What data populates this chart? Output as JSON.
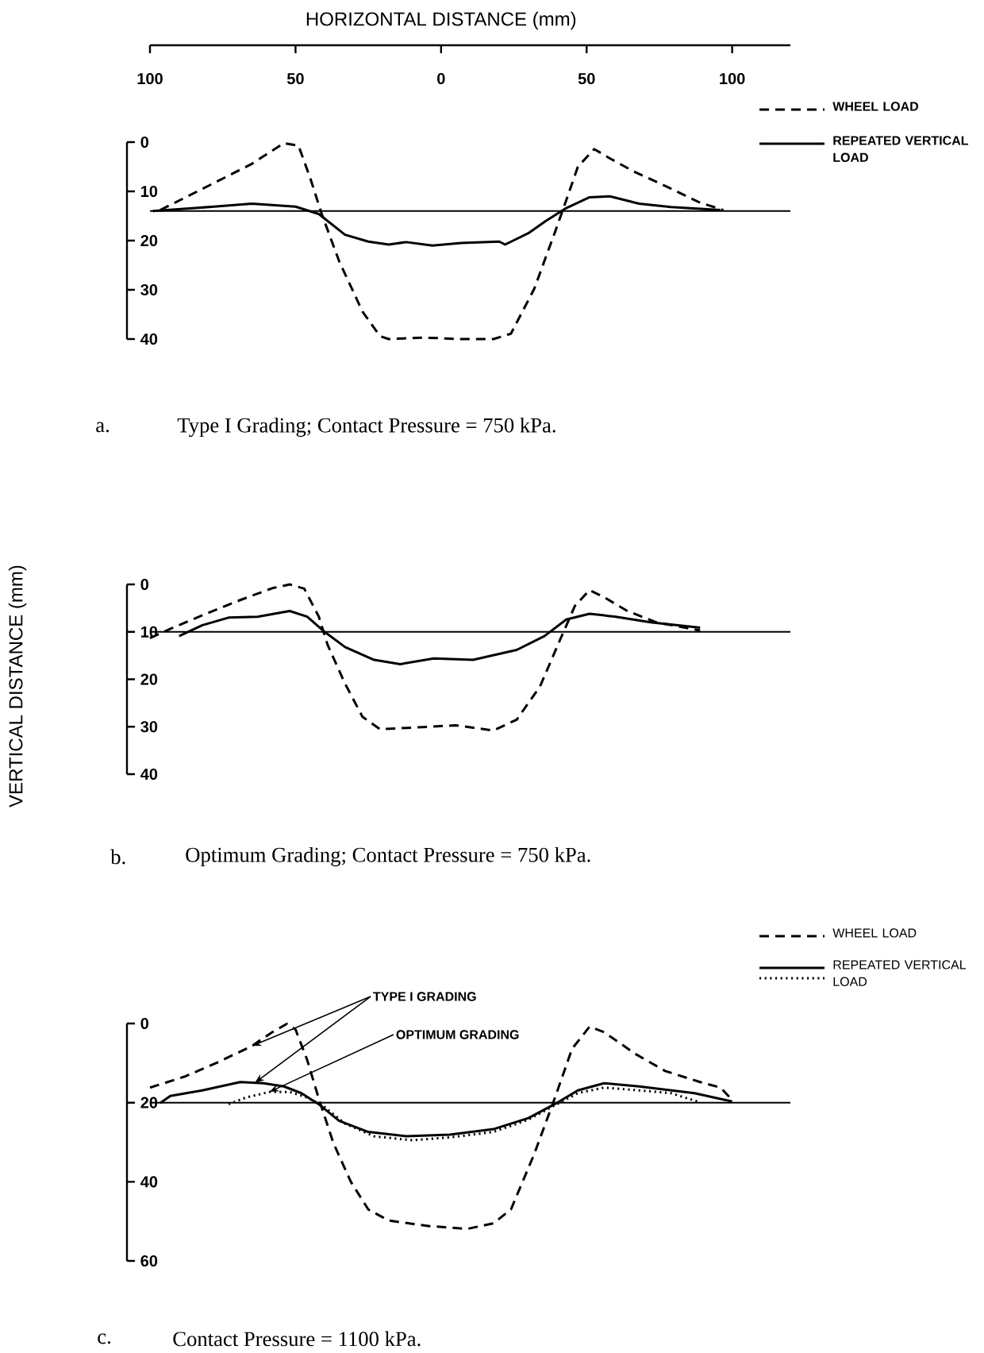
{
  "chart_data": [
    {
      "type": "line",
      "xlabel": "HORIZONTAL DISTANCE (mm)",
      "xlim": [
        -100,
        120
      ],
      "xticks": [
        {
          "value": -100,
          "label": "100"
        },
        {
          "value": -50,
          "label": "50"
        },
        0,
        50,
        100
      ],
      "ylim": [
        40,
        0
      ],
      "yticks": [
        0,
        10,
        20,
        30,
        40
      ],
      "legend": "top right",
      "series": [
        {
          "name": "WHEEL LOAD",
          "color": "#000000",
          "line_style": "dashed",
          "x": [
            -96.5,
            -82,
            -65,
            -54,
            -49,
            -45,
            -41,
            -35,
            -27,
            -21,
            -18,
            -6,
            7,
            18,
            24,
            32,
            39,
            43,
            47,
            52.6,
            58,
            66,
            77,
            89,
            97
          ],
          "values": [
            13.8,
            9.5,
            4.4,
            0.2,
            0.7,
            7.2,
            14.6,
            24.2,
            34.4,
            39.4,
            40,
            39.7,
            40,
            40,
            38.9,
            29.8,
            18.5,
            11.8,
            5,
            1.4,
            3.3,
            5.9,
            8.9,
            12.3,
            13.8
          ]
        },
        {
          "name": "REPEATED VERTICAL LOAD",
          "color": "#000000",
          "line_style": "solid",
          "x": [
            -99,
            -78,
            -65,
            -50,
            -42,
            -33,
            -25,
            -18,
            -12,
            -3,
            7,
            20,
            22,
            30,
            36,
            43,
            51,
            58,
            68,
            79,
            96
          ],
          "values": [
            14,
            13.1,
            12.5,
            13.1,
            14.6,
            18.8,
            20.2,
            20.8,
            20.3,
            21,
            20.5,
            20.2,
            20.8,
            18.5,
            16,
            13.4,
            11.2,
            11,
            12.5,
            13.2,
            13.8
          ]
        }
      ],
      "ref_lines": [
        {
          "axis": "y",
          "value": 14,
          "color": "#000000"
        }
      ],
      "annotations": [
        "a.",
        "Type I Grading; Contact Pressure = 750 kPa."
      ]
    },
    {
      "type": "line",
      "ylabel": "VERTICAL DISTANCE (mm)",
      "xlim": [
        -100,
        120
      ],
      "ylim": [
        40,
        0
      ],
      "yticks": [
        0,
        10,
        20,
        30,
        40
      ],
      "tick_labels": "y",
      "series": [
        {
          "color": "#000000",
          "line_style": "dashed",
          "x": [
            -100,
            -92,
            -80,
            -69,
            -58,
            -52,
            -47,
            -42,
            -39,
            -33,
            -27,
            -21,
            -10,
            5,
            18,
            26,
            34,
            41,
            46,
            51,
            56,
            64,
            74,
            89
          ],
          "values": [
            11.3,
            9.1,
            6,
            3.3,
            0.8,
            0,
            0.9,
            6.8,
            12.7,
            20.9,
            27.9,
            30.5,
            30.2,
            29.7,
            30.8,
            28.5,
            21.5,
            11.5,
            4.5,
            1.2,
            2.7,
            5.6,
            8,
            9.7
          ]
        },
        {
          "color": "#000000",
          "line_style": "solid",
          "x": [
            -90,
            -82,
            -73,
            -63,
            -52,
            -46,
            -40,
            -33,
            -23,
            -14,
            -2.5,
            11,
            26,
            35.5,
            43,
            51,
            60,
            72,
            89
          ],
          "values": [
            10.9,
            8.6,
            7,
            6.8,
            5.6,
            6.8,
            10,
            13.2,
            15.9,
            16.8,
            15.6,
            15.9,
            13.8,
            10.9,
            7.4,
            6.2,
            6.8,
            8,
            9.1
          ]
        }
      ],
      "ref_lines": [
        {
          "axis": "y",
          "value": 10,
          "color": "#000000"
        }
      ],
      "annotations": [
        "b.",
        "Optimum Grading; Contact Pressure = 750 kPa."
      ]
    },
    {
      "type": "line",
      "xlim": [
        -100,
        120
      ],
      "ylim": [
        60,
        0
      ],
      "yticks": [
        0,
        20,
        40,
        60
      ],
      "tick_labels": "y",
      "legend": "top right",
      "series": [
        {
          "name": "WHEEL LOAD",
          "color": "#000000",
          "line_style": "dashed",
          "x": [
            -100,
            -88,
            -77,
            -65,
            -58,
            -53,
            -50,
            -46,
            -42,
            -37,
            -31,
            -25,
            -18,
            -4,
            9,
            18,
            24,
            32,
            39,
            45,
            51,
            56,
            67,
            77,
            89,
            96,
            100
          ],
          "values": [
            16.2,
            13.4,
            9.9,
            5.7,
            2.2,
            0.1,
            1.5,
            9.2,
            19,
            30.2,
            40,
            47,
            49.8,
            51.2,
            51.9,
            50.5,
            47,
            33,
            19,
            6.4,
            0.8,
            2.2,
            7.8,
            12,
            14.8,
            16.2,
            19.3
          ]
        },
        {
          "name": "REPEATED VERTICAL LOAD",
          "color": "#000000",
          "line_style": "solid",
          "x": [
            -96.5,
            -93,
            -82,
            -69,
            -61,
            -54,
            -48,
            -42,
            -35,
            -25,
            -12,
            3,
            18,
            30,
            39,
            47,
            56,
            68,
            87,
            100
          ],
          "values": [
            20.1,
            18.3,
            16.9,
            14.8,
            15.1,
            15.9,
            17.6,
            20.4,
            24.6,
            27.4,
            28.5,
            28.1,
            26.7,
            23.9,
            20.4,
            16.9,
            15.1,
            15.9,
            17.6,
            19.7
          ]
        },
        {
          "color": "#000000",
          "line_style": "dotted",
          "x": [
            -73,
            -67,
            -59,
            -52,
            -46,
            -40,
            -33,
            -23,
            -10,
            3,
            18,
            30,
            39,
            47,
            56,
            68,
            79,
            88
          ],
          "values": [
            20.4,
            18.7,
            17.3,
            17.3,
            18.7,
            21.1,
            25.3,
            28.5,
            29.5,
            28.8,
            27.4,
            24.3,
            20.7,
            17.6,
            16.2,
            16.9,
            17.6,
            19.7
          ]
        }
      ],
      "ref_lines": [
        {
          "axis": "y",
          "value": 20,
          "color": "#000000"
        }
      ],
      "annotations": [
        "c.",
        "Contact  Pressure = 1100 kPa.",
        {
          "text": "TYPE I GRADING",
          "x": -64,
          "y": 15
        },
        {
          "text": "OPTIMUM GRADING",
          "x": -59,
          "y": 17.3
        }
      ]
    }
  ]
}
